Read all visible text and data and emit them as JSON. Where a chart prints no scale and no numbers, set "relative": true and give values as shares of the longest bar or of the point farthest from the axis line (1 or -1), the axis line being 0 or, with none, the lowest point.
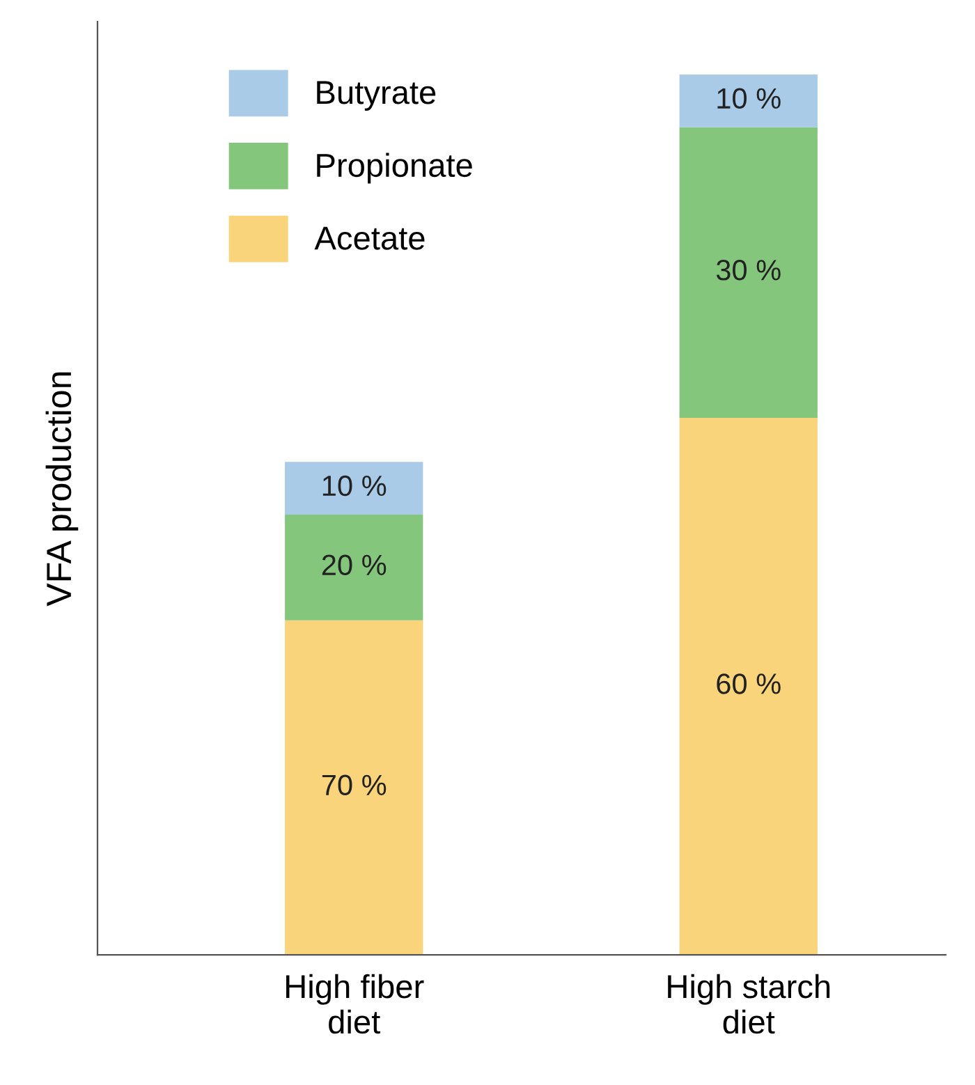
{
  "chart_data": {
    "type": "bar",
    "stacked": true,
    "relative": true,
    "ylabel": "VFA production",
    "categories": [
      "High fiber\ndiet",
      "High starch\ndiet"
    ],
    "series": [
      {
        "name": "Acetate",
        "color": "#f9d47a",
        "values": [
          0.38,
          0.61
        ]
      },
      {
        "name": "Propionate",
        "color": "#84c77c",
        "values": [
          0.12,
          0.33
        ]
      },
      {
        "name": "Butyrate",
        "color": "#a9cbe8",
        "values": [
          0.06,
          0.06
        ]
      }
    ],
    "annotations": [
      "70 %",
      "20 %",
      "10 %",
      "60 %",
      "30 %",
      "10 %"
    ],
    "legend": "top left",
    "grid": false
  }
}
